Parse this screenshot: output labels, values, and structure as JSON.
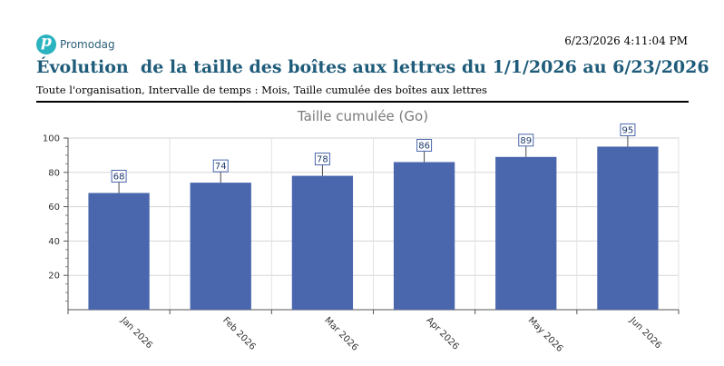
{
  "header": {
    "brand": "Promodag",
    "timestamp": "6/23/2026 4:11:04 PM",
    "title": "Évolution  de la taille des boîtes aux lettres du 1/1/2026 au 6/23/2026",
    "subtitle": "Toute l'organisation, Intervalle de temps : Mois, Taille cumulée des boîtes aux lettres"
  },
  "colors": {
    "bar": "#4a66ad",
    "title": "#1f5c7a",
    "logo": "#2bb3c0"
  },
  "chart_data": {
    "type": "bar",
    "title": "Taille cumulée (Go)",
    "categories": [
      "Jan 2026",
      "Feb 2026",
      "Mar 2026",
      "Apr 2026",
      "May 2026",
      "Jun 2026"
    ],
    "values": [
      68,
      74,
      78,
      86,
      89,
      95
    ],
    "yticks": [
      20,
      40,
      60,
      80,
      100
    ],
    "ylim": [
      0,
      100
    ],
    "grid": true,
    "legend": "none"
  }
}
